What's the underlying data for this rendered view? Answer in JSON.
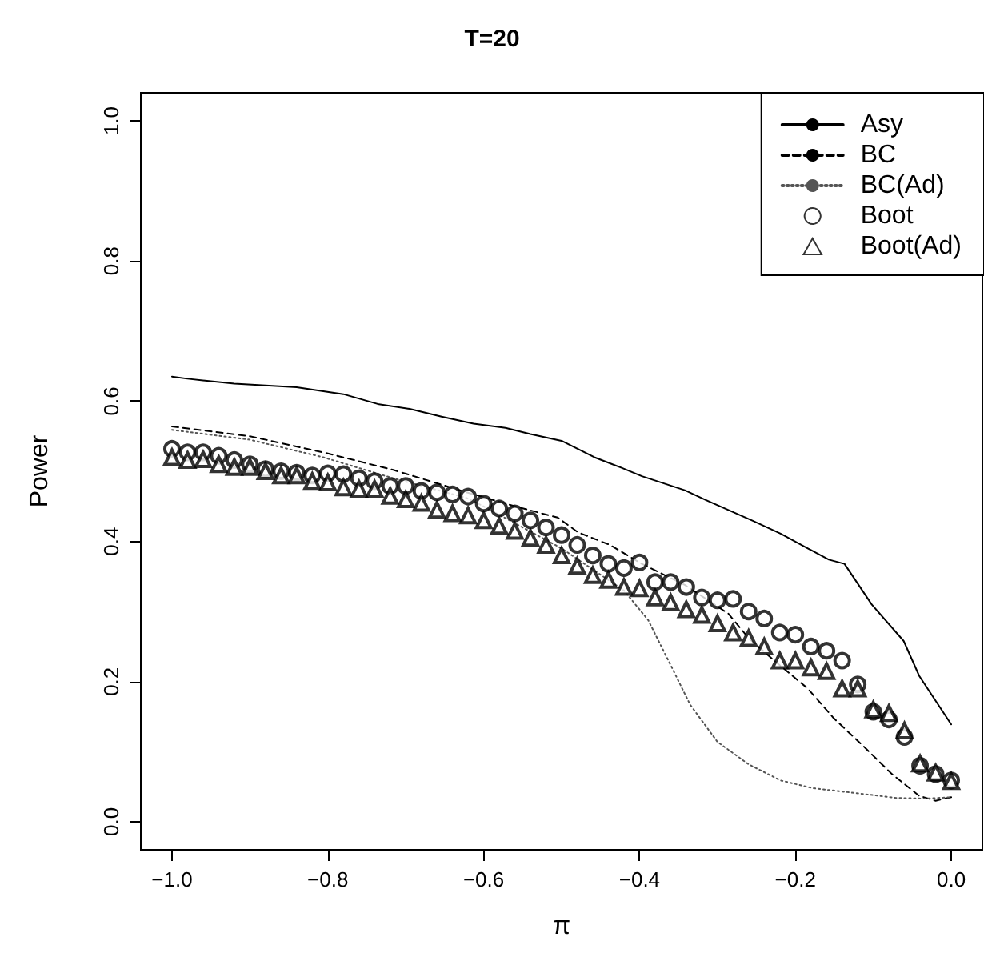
{
  "chart_data": {
    "type": "line",
    "title": "T=20",
    "xlabel": "π",
    "ylabel": "Power",
    "xlim": [
      -1.04,
      0.04
    ],
    "ylim": [
      -0.04,
      1.04
    ],
    "xticks": [
      {
        "value": -1,
        "label": "−1.0"
      },
      {
        "value": -0.8,
        "label": "−0.8"
      },
      {
        "value": -0.6,
        "label": "−0.6"
      },
      {
        "value": -0.4,
        "label": "−0.4"
      },
      {
        "value": -0.2,
        "label": "−0.2"
      },
      {
        "value": 0,
        "label": "0.0"
      }
    ],
    "yticks": [
      {
        "value": 0,
        "label": "0.0"
      },
      {
        "value": 0.2,
        "label": "0.2"
      },
      {
        "value": 0.4,
        "label": "0.4"
      },
      {
        "value": 0.6,
        "label": "0.6"
      },
      {
        "value": 0.8,
        "label": "0.8"
      },
      {
        "value": 1,
        "label": "1.0"
      }
    ],
    "grid": false,
    "legend": "top right",
    "series": [
      {
        "name": "Asy",
        "color": "#000000",
        "line_style": "solid",
        "marker": "none",
        "x": [
          -1,
          -0.98,
          -0.92,
          -0.84,
          -0.78,
          -0.736,
          -0.695,
          -0.654,
          -0.613,
          -0.572,
          -0.54,
          -0.499,
          -0.458,
          -0.423,
          -0.397,
          -0.342,
          -0.315,
          -0.254,
          -0.219,
          -0.184,
          -0.157,
          -0.137,
          -0.102,
          -0.061,
          -0.041,
          0
        ],
        "values": [
          0.635,
          0.632,
          0.625,
          0.62,
          0.61,
          0.596,
          0.589,
          0.578,
          0.568,
          0.562,
          0.553,
          0.543,
          0.52,
          0.505,
          0.493,
          0.473,
          0.459,
          0.429,
          0.411,
          0.39,
          0.374,
          0.368,
          0.31,
          0.258,
          0.208,
          0.139
        ]
      },
      {
        "name": "BC",
        "color": "#000000",
        "line_style": "dashed",
        "marker": "none",
        "x": [
          -1,
          -0.9,
          -0.806,
          -0.716,
          -0.622,
          -0.553,
          -0.505,
          -0.479,
          -0.438,
          -0.397,
          -0.342,
          -0.286,
          -0.26,
          -0.225,
          -0.184,
          -0.151,
          -0.11,
          -0.076,
          -0.041,
          -0.02,
          0
        ],
        "values": [
          0.564,
          0.55,
          0.527,
          0.502,
          0.47,
          0.448,
          0.434,
          0.413,
          0.395,
          0.368,
          0.338,
          0.297,
          0.262,
          0.228,
          0.19,
          0.148,
          0.105,
          0.068,
          0.037,
          0.03,
          0.035
        ]
      },
      {
        "name": "BC(Ad)",
        "color": "#555555",
        "line_style": "dotted",
        "marker": "none",
        "x": [
          -1,
          -0.9,
          -0.806,
          -0.716,
          -0.622,
          -0.6,
          -0.55,
          -0.5,
          -0.46,
          -0.42,
          -0.389,
          -0.362,
          -0.335,
          -0.3,
          -0.26,
          -0.219,
          -0.178,
          -0.123,
          -0.07,
          -0.033,
          0
        ],
        "values": [
          0.559,
          0.545,
          0.52,
          0.49,
          0.462,
          0.45,
          0.42,
          0.39,
          0.36,
          0.33,
          0.288,
          0.228,
          0.167,
          0.114,
          0.082,
          0.059,
          0.048,
          0.041,
          0.034,
          0.033,
          0.035
        ]
      },
      {
        "name": "Boot",
        "type": "scatter",
        "color": "#000000",
        "marker": "circle",
        "x": [
          -1,
          -0.98,
          -0.96,
          -0.94,
          -0.92,
          -0.9,
          -0.88,
          -0.86,
          -0.84,
          -0.82,
          -0.8,
          -0.78,
          -0.76,
          -0.74,
          -0.72,
          -0.7,
          -0.68,
          -0.66,
          -0.64,
          -0.62,
          -0.6,
          -0.58,
          -0.56,
          -0.54,
          -0.52,
          -0.5,
          -0.48,
          -0.46,
          -0.44,
          -0.42,
          -0.4,
          -0.38,
          -0.36,
          -0.34,
          -0.32,
          -0.3,
          -0.28,
          -0.26,
          -0.24,
          -0.22,
          -0.2,
          -0.18,
          -0.16,
          -0.14,
          -0.12,
          -0.1,
          -0.08,
          -0.06,
          -0.04,
          -0.02,
          0
        ],
        "values": [
          0.532,
          0.527,
          0.527,
          0.522,
          0.516,
          0.51,
          0.503,
          0.5,
          0.498,
          0.494,
          0.497,
          0.496,
          0.49,
          0.486,
          0.479,
          0.479,
          0.472,
          0.47,
          0.467,
          0.464,
          0.454,
          0.447,
          0.44,
          0.43,
          0.42,
          0.409,
          0.395,
          0.38,
          0.368,
          0.362,
          0.37,
          0.342,
          0.342,
          0.335,
          0.32,
          0.316,
          0.318,
          0.3,
          0.29,
          0.27,
          0.267,
          0.25,
          0.244,
          0.23,
          0.196,
          0.157,
          0.146,
          0.121,
          0.08,
          0.068,
          0.059
        ]
      },
      {
        "name": "Boot(Ad)",
        "type": "scatter",
        "color": "#000000",
        "marker": "triangle",
        "x": [
          -1,
          -0.98,
          -0.96,
          -0.94,
          -0.92,
          -0.9,
          -0.88,
          -0.86,
          -0.84,
          -0.82,
          -0.8,
          -0.78,
          -0.76,
          -0.74,
          -0.72,
          -0.7,
          -0.68,
          -0.66,
          -0.64,
          -0.62,
          -0.6,
          -0.58,
          -0.56,
          -0.54,
          -0.52,
          -0.5,
          -0.48,
          -0.46,
          -0.44,
          -0.42,
          -0.4,
          -0.38,
          -0.36,
          -0.34,
          -0.32,
          -0.3,
          -0.28,
          -0.26,
          -0.24,
          -0.22,
          -0.2,
          -0.18,
          -0.16,
          -0.14,
          -0.12,
          -0.1,
          -0.08,
          -0.06,
          -0.04,
          -0.02,
          0
        ],
        "values": [
          0.52,
          0.516,
          0.517,
          0.51,
          0.506,
          0.506,
          0.5,
          0.494,
          0.494,
          0.486,
          0.484,
          0.477,
          0.475,
          0.475,
          0.465,
          0.46,
          0.455,
          0.445,
          0.44,
          0.437,
          0.43,
          0.422,
          0.415,
          0.405,
          0.395,
          0.38,
          0.365,
          0.352,
          0.345,
          0.335,
          0.333,
          0.32,
          0.313,
          0.303,
          0.295,
          0.283,
          0.27,
          0.262,
          0.25,
          0.23,
          0.23,
          0.22,
          0.215,
          0.19,
          0.19,
          0.16,
          0.155,
          0.13,
          0.083,
          0.07,
          0.058
        ]
      }
    ]
  }
}
